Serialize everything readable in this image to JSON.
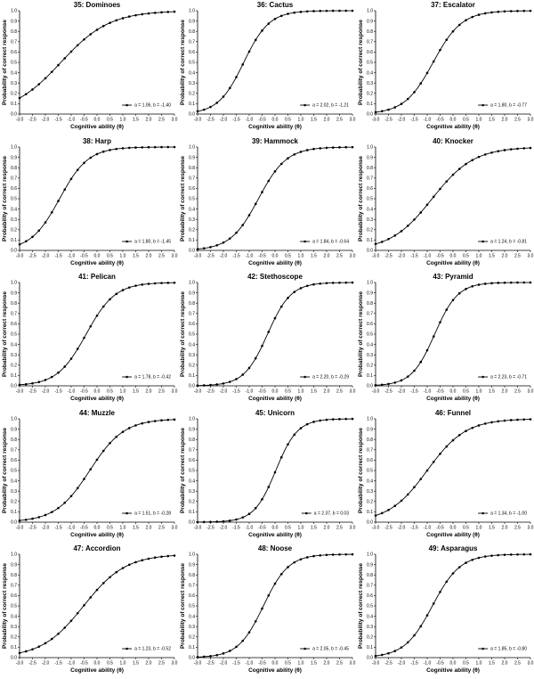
{
  "chart_data": [
    {
      "type": "line",
      "title": "35: Dominoes",
      "xlabel": "Cognitive ability (θ)",
      "ylabel": "Probability of correct response",
      "legend": "a = 1.06, b = -1.40",
      "a": 1.06,
      "b": -1.4
    },
    {
      "type": "line",
      "title": "36: Cactus",
      "xlabel": "Cognitive ability (θ)",
      "ylabel": "Probability of correct response",
      "legend": "a = 2.02, b = -1.21",
      "a": 2.02,
      "b": -1.21
    },
    {
      "type": "line",
      "title": "37: Escalator",
      "xlabel": "Cognitive ability (θ)",
      "ylabel": "Probability of correct response",
      "legend": "a = 1.80, b = -0.77",
      "a": 1.8,
      "b": -0.77
    },
    {
      "type": "line",
      "title": "38: Harp",
      "xlabel": "Cognitive ability (θ)",
      "ylabel": "Probability of correct response",
      "legend": "a = 1.80, b = -1.45",
      "a": 1.8,
      "b": -1.45
    },
    {
      "type": "line",
      "title": "39: Hammock",
      "xlabel": "Cognitive ability (θ)",
      "ylabel": "Probability of correct response",
      "legend": "a = 1.84, b = -0.64",
      "a": 1.84,
      "b": -0.64
    },
    {
      "type": "line",
      "title": "40: Knocker",
      "xlabel": "Cognitive ability (θ)",
      "ylabel": "Probability of correct response",
      "legend": "a = 1.24, b = -0.81",
      "a": 1.24,
      "b": -0.81
    },
    {
      "type": "line",
      "title": "41: Pelican",
      "xlabel": "Cognitive ability (θ)",
      "ylabel": "Probability of correct response",
      "legend": "a = 1.78, b = -0.42",
      "a": 1.78,
      "b": -0.42
    },
    {
      "type": "line",
      "title": "42: Stethoscope",
      "xlabel": "Cognitive ability (θ)",
      "ylabel": "Probability of correct response",
      "legend": "a = 2.20, b = -0.29",
      "a": 2.2,
      "b": -0.29
    },
    {
      "type": "line",
      "title": "43: Pyramid",
      "xlabel": "Cognitive ability (θ)",
      "ylabel": "Probability of correct response",
      "legend": "a = 2.23, b = -0.71",
      "a": 2.23,
      "b": -0.71
    },
    {
      "type": "line",
      "title": "44: Muzzle",
      "xlabel": "Cognitive ability (θ)",
      "ylabel": "Probability of correct response",
      "legend": "a = 1.51, b = -0.28",
      "a": 1.51,
      "b": -0.28
    },
    {
      "type": "line",
      "title": "45: Unicorn",
      "xlabel": "Cognitive ability (θ)",
      "ylabel": "Probability of correct response",
      "legend": "a = 2.37, b = 0.03",
      "a": 2.37,
      "b": 0.03
    },
    {
      "type": "line",
      "title": "46: Funnel",
      "xlabel": "Cognitive ability (θ)",
      "ylabel": "Probability of correct response",
      "legend": "a = 1.34, b = -1.00",
      "a": 1.34,
      "b": -1.0
    },
    {
      "type": "line",
      "title": "47: Accordion",
      "xlabel": "Cognitive ability (θ)",
      "ylabel": "Probability of correct response",
      "legend": "a = 1.23, b = -0.52",
      "a": 1.23,
      "b": -0.52
    },
    {
      "type": "line",
      "title": "48: Noose",
      "xlabel": "Cognitive ability (θ)",
      "ylabel": "Probability of correct response",
      "legend": "a = 2.05, b = -0.45",
      "a": 2.05,
      "b": -0.45
    },
    {
      "type": "line",
      "title": "49: Asparagus",
      "xlabel": "Cognitive ability (θ)",
      "ylabel": "Probability of correct response",
      "legend": "a = 1.85, b = -0.80",
      "a": 1.85,
      "b": -0.8
    }
  ],
  "shared_axes": {
    "xlim": [
      -3.0,
      3.0
    ],
    "ylim": [
      0.0,
      1.0
    ],
    "x_step": 0.25,
    "x_ticks": [
      "-3.0",
      "-2.5",
      "-2.0",
      "-1.5",
      "-1.0",
      "-0.5",
      "0.0",
      "0.5",
      "1.0",
      "1.5",
      "2.0",
      "2.5",
      "3.0"
    ],
    "y_ticks": [
      "0.0",
      "0.1",
      "0.2",
      "0.3",
      "0.4",
      "0.5",
      "0.6",
      "0.7",
      "0.8",
      "0.9",
      "1.0"
    ],
    "model": "2PL logistic",
    "grid": false,
    "legend_position": "bottom-right",
    "marker": "filled-circle",
    "line_color": "#000000"
  }
}
